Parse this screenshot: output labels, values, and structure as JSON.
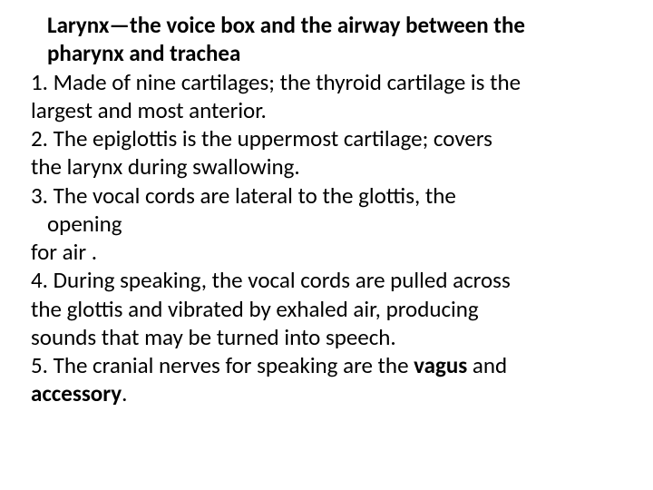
{
  "title_line1": "Larynx—the voice box and the airway between the",
  "title_line2": "pharynx and trachea",
  "p1_l1": "1. Made of nine cartilages; the thyroid cartilage is the",
  "p1_l2": "largest and most anterior.",
  "p2_l1": "2. The epiglottis is the uppermost cartilage; covers",
  "p2_l2": "the larynx during swallowing.",
  "p3_l1": "3. The vocal cords are lateral to the glottis, the",
  "p3_l2": "opening",
  "p3_l3": "for air .",
  "p4_l1": "4. During speaking, the vocal cords are pulled across",
  "p4_l2": "the glottis and vibrated by exhaled air, producing",
  "p4_l3": "sounds that may be turned into speech.",
  "p5_pre": "5. The cranial nerves for speaking are the ",
  "p5_b1": "vagus",
  "p5_mid": " and",
  "p5_b2": "accessory",
  "p5_post": "."
}
